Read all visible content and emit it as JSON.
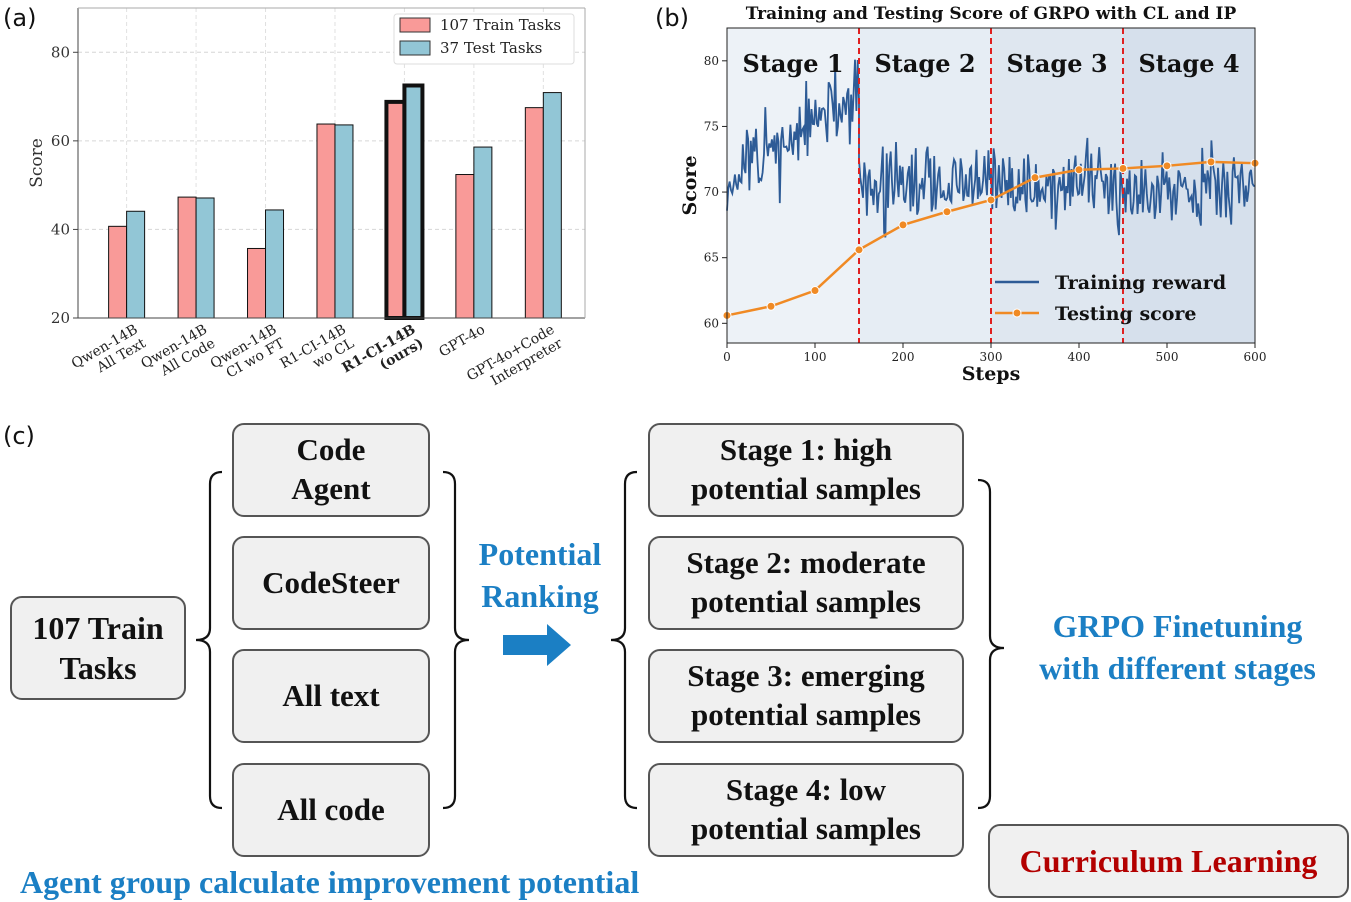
{
  "panels": {
    "a": "(a)",
    "b": "(b)",
    "c": "(c)"
  },
  "chart_data": [
    {
      "type": "bar",
      "ylabel": "Score",
      "ylim": [
        20,
        90
      ],
      "yticks": [
        20,
        40,
        60,
        80
      ],
      "grid": true,
      "legend_position": "top-right",
      "categories": [
        "Qwen-14B\nAll Text",
        "Qwen-14B\nAll Code",
        "Qwen-14B\nCI wo FT",
        "R1-CI-14B\nwo CL",
        "R1-CI-14B\n(ours)",
        "GPT-4o",
        "GPT-4o+Code\nInterpreter"
      ],
      "highlight_category_index": 4,
      "series": [
        {
          "name": "107 Train Tasks",
          "color": "#f99a98",
          "values": [
            40.7,
            47.3,
            35.7,
            63.8,
            68.8,
            52.4,
            67.5
          ]
        },
        {
          "name": "37 Test Tasks",
          "color": "#92c6d6",
          "values": [
            44.1,
            47.1,
            44.4,
            63.6,
            72.5,
            58.6,
            70.9
          ]
        }
      ]
    },
    {
      "type": "line",
      "title": "Training and Testing Score of GRPO with CL and IP",
      "xlabel": "Steps",
      "ylabel": "Score",
      "xlim": [
        0,
        600
      ],
      "ylim": [
        58.5,
        82.5
      ],
      "xticks": [
        0,
        100,
        200,
        300,
        400,
        500,
        600
      ],
      "yticks": [
        60,
        65,
        70,
        75,
        80
      ],
      "legend_position": "lower-right",
      "stage_boundaries": [
        150,
        300,
        450
      ],
      "stages": [
        "Stage 1",
        "Stage 2",
        "Stage 3",
        "Stage 4"
      ],
      "stage_colors": [
        "#edf2f7",
        "#e6edf4",
        "#dfe7f0",
        "#d6e0ec"
      ],
      "series": [
        {
          "name": "Training reward",
          "color": "#2d5b96",
          "segments": [
            {
              "from": 0,
              "to": 150,
              "start_mean": 70.8,
              "end_mean": 77.5
            },
            {
              "from": 150,
              "to": 600,
              "start_mean": 70.5,
              "end_mean": 70.5
            }
          ],
          "noise_amplitude": 2.3,
          "step_interval": 1.5
        },
        {
          "name": "Testing score",
          "color": "#f08a24",
          "x": [
            0,
            50,
            100,
            150,
            200,
            250,
            300,
            350,
            400,
            450,
            500,
            550,
            600
          ],
          "y": [
            60.6,
            61.3,
            62.5,
            65.6,
            67.5,
            68.5,
            69.4,
            71.1,
            71.7,
            71.8,
            72.0,
            72.3,
            72.2
          ]
        }
      ]
    }
  ],
  "diagram": {
    "source_box": "107 Train\nTasks",
    "agents": [
      "Code\nAgent",
      "CodeSteer",
      "All text",
      "All code"
    ],
    "ranking_label": "Potential\nRanking",
    "stages": [
      "Stage 1: high\npotential samples",
      "Stage 2: moderate\npotential samples",
      "Stage 3: emerging\npotential samples",
      "Stage 4: low\npotential samples"
    ],
    "finetune_label": "GRPO Finetuning\nwith different stages",
    "agent_caption": "Agent group calculate improvement potential",
    "curriculum_label": "Curriculum Learning",
    "colors": {
      "accent_blue": "#1b7fc4",
      "curriculum_red": "#b30000"
    }
  }
}
